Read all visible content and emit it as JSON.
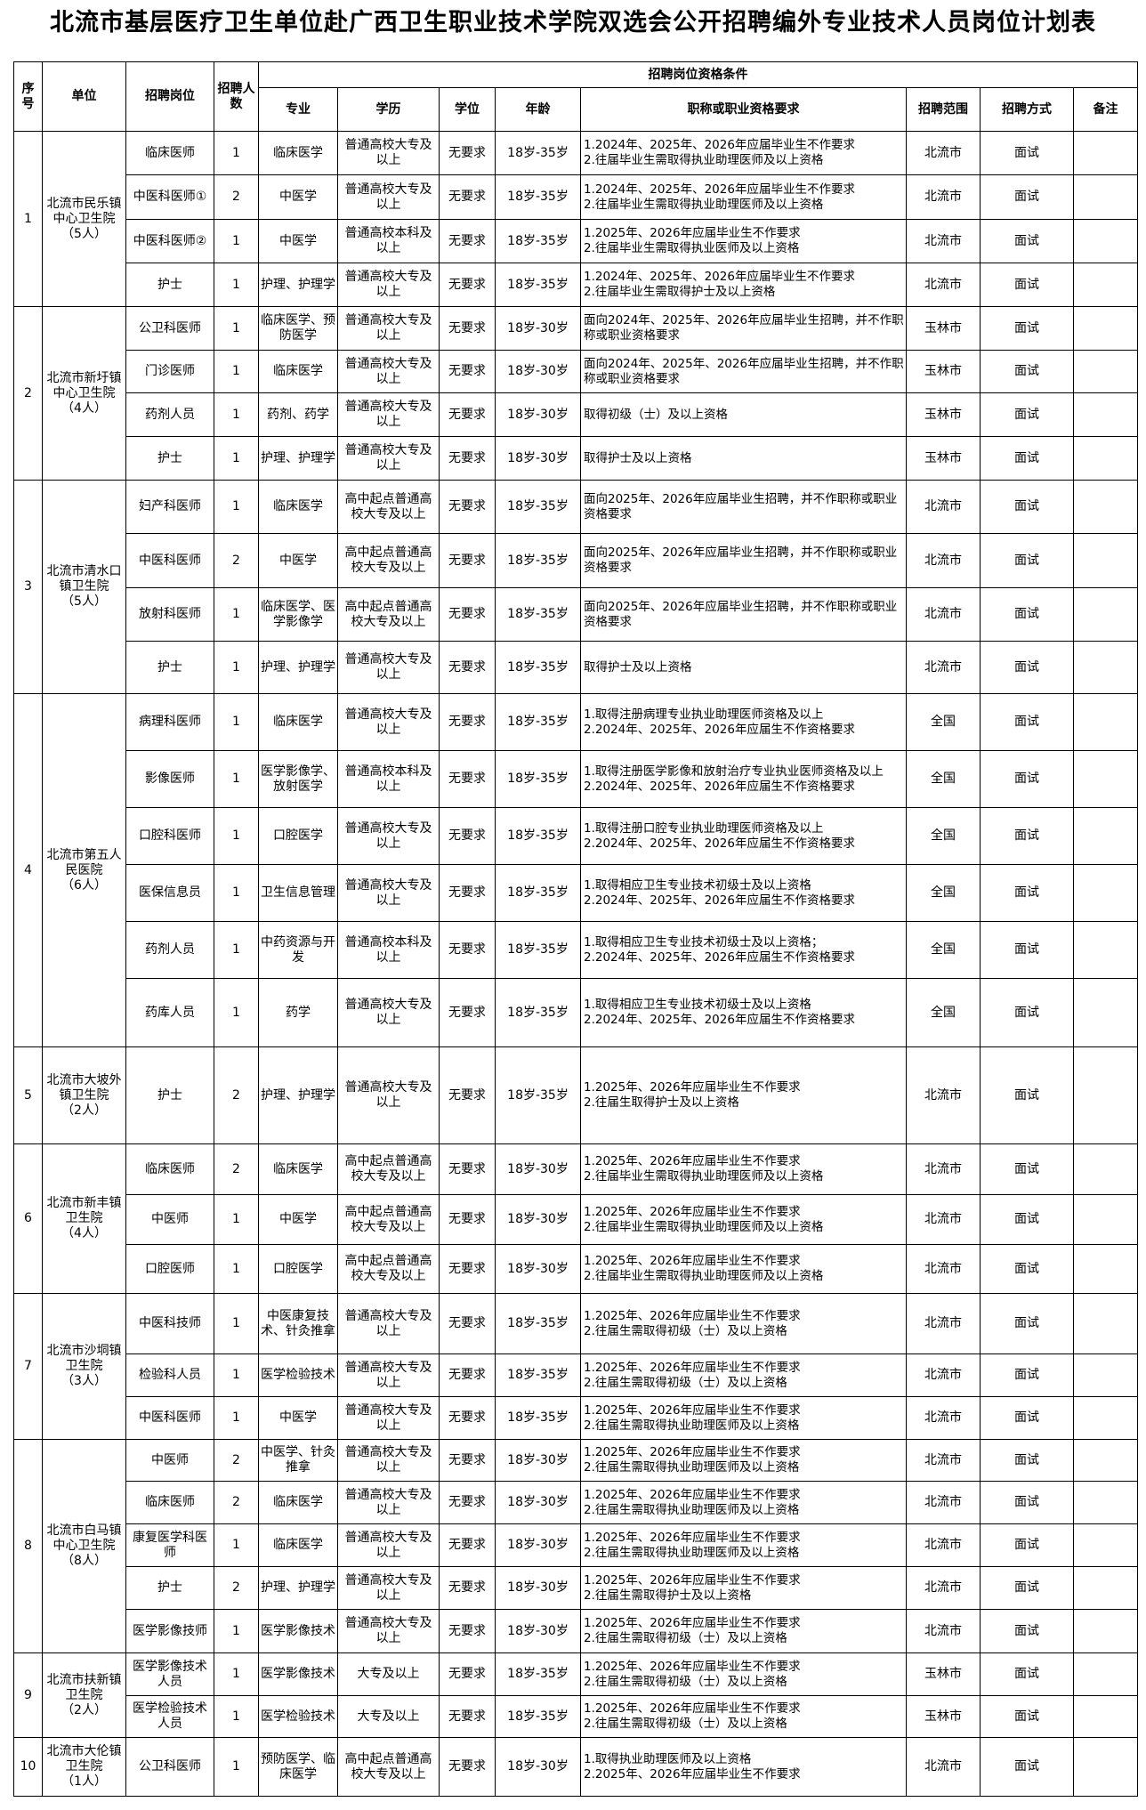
{
  "title": "北流市基层医疗卫生单位赴广西卫生职业技术学院双选会公开招聘编外专业技术人员岗位计划表",
  "headers": {
    "seq": "序号",
    "unit": "单位",
    "post": "招聘岗位",
    "count": "招聘人数",
    "conditions": "招聘岗位资格条件",
    "major": "专业",
    "edu": "学历",
    "degree": "学位",
    "age": "年龄",
    "req": "职称或职业资格要求",
    "scope": "招聘范围",
    "method": "招聘方式",
    "remark": "备注"
  },
  "groups": [
    {
      "seq": "1",
      "unit": "北流市民乐镇中心卫生院",
      "total": "（5人）",
      "rows": [
        {
          "post": "临床医师",
          "count": "1",
          "major": "临床医学",
          "edu": "普通高校大专及以上",
          "degree": "无要求",
          "age": "18岁-35岁",
          "req": [
            "1.2024年、2025年、2026年应届毕业生不作要求",
            "2.往届毕业生需取得执业助理医师及以上资格"
          ],
          "scope": "北流市",
          "method": "面试"
        },
        {
          "post": "中医科医师①",
          "count": "2",
          "major": "中医学",
          "edu": "普通高校大专及以上",
          "degree": "无要求",
          "age": "18岁-35岁",
          "req": [
            "1.2024年、2025年、2026年应届毕业生不作要求",
            "2.往届毕业生需取得执业助理医师及以上资格"
          ],
          "scope": "北流市",
          "method": "面试"
        },
        {
          "post": "中医科医师②",
          "count": "1",
          "major": "中医学",
          "edu": "普通高校本科及以上",
          "degree": "无要求",
          "age": "18岁-35岁",
          "req": [
            "1.2025年、2026年应届毕业生不作要求",
            "2.往届毕业生需取得执业医师及以上资格"
          ],
          "scope": "北流市",
          "method": "面试"
        },
        {
          "post": "护士",
          "count": "1",
          "major": "护理、护理学",
          "edu": "普通高校大专及以上",
          "degree": "无要求",
          "age": "18岁-35岁",
          "req": [
            "1.2024年、2025年、2026年应届毕业生不作要求",
            "2.往届毕业生需取得护士及以上资格"
          ],
          "scope": "北流市",
          "method": "面试"
        }
      ]
    },
    {
      "seq": "2",
      "unit": "北流市新圩镇中心卫生院",
      "total": "（4人）",
      "rows": [
        {
          "post": "公卫科医师",
          "count": "1",
          "major": "临床医学、预防医学",
          "edu": "普通高校大专及以上",
          "degree": "无要求",
          "age": "18岁-30岁",
          "req": [
            "面向2024年、2025年、2026年应届毕业生招聘，并不作职称或职业资格要求"
          ],
          "scope": "玉林市",
          "method": "面试"
        },
        {
          "post": "门诊医师",
          "count": "1",
          "major": "临床医学",
          "edu": "普通高校大专及以上",
          "degree": "无要求",
          "age": "18岁-30岁",
          "req": [
            "面向2024年、2025年、2026年应届毕业生招聘，并不作职称或职业资格要求"
          ],
          "scope": "玉林市",
          "method": "面试"
        },
        {
          "post": "药剂人员",
          "count": "1",
          "major": "药剂、药学",
          "edu": "普通高校大专及以上",
          "degree": "无要求",
          "age": "18岁-30岁",
          "req": [
            "取得初级（士）及以上资格"
          ],
          "scope": "玉林市",
          "method": "面试"
        },
        {
          "post": "护士",
          "count": "1",
          "major": "护理、护理学",
          "edu": "普通高校大专及以上",
          "degree": "无要求",
          "age": "18岁-30岁",
          "req": [
            "取得护士及以上资格"
          ],
          "scope": "玉林市",
          "method": "面试"
        }
      ]
    },
    {
      "seq": "3",
      "unit": "北流市清水口镇卫生院",
      "total": "（5人）",
      "rows": [
        {
          "post": "妇产科医师",
          "count": "1",
          "major": "临床医学",
          "edu": "高中起点普通高校大专及以上",
          "degree": "无要求",
          "age": "18岁-35岁",
          "req": [
            "面向2025年、2026年应届毕业生招聘，并不作职称或职业资格要求"
          ],
          "scope": "北流市",
          "method": "面试"
        },
        {
          "post": "中医科医师",
          "count": "2",
          "major": "中医学",
          "edu": "高中起点普通高校大专及以上",
          "degree": "无要求",
          "age": "18岁-35岁",
          "req": [
            "面向2025年、2026年应届毕业生招聘，并不作职称或职业资格要求"
          ],
          "scope": "北流市",
          "method": "面试"
        },
        {
          "post": "放射科医师",
          "count": "1",
          "major": "临床医学、医学影像学",
          "edu": "高中起点普通高校大专及以上",
          "degree": "无要求",
          "age": "18岁-35岁",
          "req": [
            "面向2025年、2026年应届毕业生招聘，并不作职称或职业资格要求"
          ],
          "scope": "北流市",
          "method": "面试"
        },
        {
          "post": "护士",
          "count": "1",
          "major": "护理、护理学",
          "edu": "普通高校大专及以上",
          "degree": "无要求",
          "age": "18岁-35岁",
          "req": [
            "取得护士及以上资格"
          ],
          "scope": "北流市",
          "method": "面试"
        }
      ]
    },
    {
      "seq": "4",
      "unit": "北流市第五人民医院",
      "total": "（6人）",
      "rows": [
        {
          "post": "病理科医师",
          "count": "1",
          "major": "临床医学",
          "edu": "普通高校大专及以上",
          "degree": "无要求",
          "age": "18岁-35岁",
          "req": [
            "1.取得注册病理专业执业助理医师资格及以上",
            "2.2024年、2025年、2026年应届生不作资格要求"
          ],
          "scope": "全国",
          "method": "面试"
        },
        {
          "post": "影像医师",
          "count": "1",
          "major": "医学影像学、放射医学",
          "edu": "普通高校本科及以上",
          "degree": "无要求",
          "age": "18岁-35岁",
          "req": [
            "1.取得注册医学影像和放射治疗专业执业医师资格及以上",
            "2.2024年、2025年、2026年应届生不作资格要求"
          ],
          "scope": "全国",
          "method": "面试"
        },
        {
          "post": "口腔科医师",
          "count": "1",
          "major": "口腔医学",
          "edu": "普通高校大专及以上",
          "degree": "无要求",
          "age": "18岁-35岁",
          "req": [
            "1.取得注册口腔专业执业助理医师资格及以上",
            "2.2024年、2025年、2026年应届生不作资格要求"
          ],
          "scope": "全国",
          "method": "面试"
        },
        {
          "post": "医保信息员",
          "count": "1",
          "major": "卫生信息管理",
          "edu": "普通高校大专及以上",
          "degree": "无要求",
          "age": "18岁-35岁",
          "req": [
            "1.取得相应卫生专业技术初级士及以上资格",
            "2.2024年、2025年、2026年应届生不作资格要求"
          ],
          "scope": "全国",
          "method": "面试"
        },
        {
          "post": "药剂人员",
          "count": "1",
          "major": "中药资源与开发",
          "edu": "普通高校本科及以上",
          "degree": "无要求",
          "age": "18岁-35岁",
          "req": [
            "1.取得相应卫生专业技术初级士及以上资格；",
            "2.2024年、2025年、2026年应届生不作资格要求"
          ],
          "scope": "全国",
          "method": "面试"
        },
        {
          "post": "药库人员",
          "count": "1",
          "major": "药学",
          "edu": "普通高校大专及以上",
          "degree": "无要求",
          "age": "18岁-35岁",
          "req": [
            "1.取得相应卫生专业技术初级士及以上资格",
            "2.2024年、2025年、2026年应届生不作资格要求"
          ],
          "scope": "全国",
          "method": "面试"
        }
      ]
    },
    {
      "seq": "5",
      "unit": "北流市大坡外镇卫生院",
      "total": "（2人）",
      "rows": [
        {
          "post": "护士",
          "count": "2",
          "major": "护理、护理学",
          "edu": "普通高校大专及以上",
          "degree": "无要求",
          "age": "18岁-35岁",
          "req": [
            "1.2025年、2026年应届毕业生不作要求",
            "2.往届生取得护士及以上资格"
          ],
          "scope": "北流市",
          "method": "面试"
        }
      ]
    },
    {
      "seq": "6",
      "unit": "北流市新丰镇卫生院",
      "total": "（4人）",
      "rows": [
        {
          "post": "临床医师",
          "count": "2",
          "major": "临床医学",
          "edu": "高中起点普通高校大专及以上",
          "degree": "无要求",
          "age": "18岁-30岁",
          "req": [
            "1.2025年、2026年应届毕业生不作要求",
            "2.往届毕业生需取得执业助理医师及以上资格"
          ],
          "scope": "北流市",
          "method": "面试"
        },
        {
          "post": "中医师",
          "count": "1",
          "major": "中医学",
          "edu": "高中起点普通高校大专及以上",
          "degree": "无要求",
          "age": "18岁-30岁",
          "req": [
            "1.2025年、2026年应届毕业生不作要求",
            "2.往届毕业生需取得执业助理医师及以上资格"
          ],
          "scope": "北流市",
          "method": "面试"
        },
        {
          "post": "口腔医师",
          "count": "1",
          "major": "口腔医学",
          "edu": "高中起点普通高校大专及以上",
          "degree": "无要求",
          "age": "18岁-30岁",
          "req": [
            "1.2025年、2026年应届毕业生不作要求",
            "2.往届毕业生需取得执业助理医师及以上资格"
          ],
          "scope": "北流市",
          "method": "面试"
        }
      ]
    },
    {
      "seq": "7",
      "unit": "北流市沙垌镇卫生院",
      "total": "（3人）",
      "rows": [
        {
          "post": "中医科技师",
          "count": "1",
          "major": "中医康复技术、针灸推拿",
          "edu": "普通高校大专及以上",
          "degree": "无要求",
          "age": "18岁-35岁",
          "req": [
            "1.2025年、2026年应届毕业生不作要求",
            "2.往届生需取得初级（士）及以上资格"
          ],
          "scope": "北流市",
          "method": "面试"
        },
        {
          "post": "检验科人员",
          "count": "1",
          "major": "医学检验技术",
          "edu": "普通高校大专及以上",
          "degree": "无要求",
          "age": "18岁-35岁",
          "req": [
            "1.2025年、2026年应届毕业生不作要求",
            "2.往届生需取得初级（士）及以上资格"
          ],
          "scope": "北流市",
          "method": "面试"
        },
        {
          "post": "中医科医师",
          "count": "1",
          "major": "中医学",
          "edu": "普通高校大专及以上",
          "degree": "无要求",
          "age": "18岁-35岁",
          "req": [
            "1.2025年、2026年应届毕业生不作要求",
            "2.往届生需取得执业助理医师及以上资格"
          ],
          "scope": "北流市",
          "method": "面试"
        }
      ]
    },
    {
      "seq": "8",
      "unit": "北流市白马镇中心卫生院",
      "total": "（8人）",
      "rows": [
        {
          "post": "中医师",
          "count": "2",
          "major": "中医学、针灸推拿",
          "edu": "普通高校大专及以上",
          "degree": "无要求",
          "age": "18岁-30岁",
          "req": [
            "1.2025年、2026年应届毕业生不作要求",
            "2.往届生需取得执业助理医师及以上资格"
          ],
          "scope": "北流市",
          "method": "面试"
        },
        {
          "post": "临床医师",
          "count": "2",
          "major": "临床医学",
          "edu": "普通高校大专及以上",
          "degree": "无要求",
          "age": "18岁-30岁",
          "req": [
            "1.2025年、2026年应届毕业生不作要求",
            "2.往届生需取得执业助理医师及以上资格"
          ],
          "scope": "北流市",
          "method": "面试"
        },
        {
          "post": "康复医学科医师",
          "count": "1",
          "major": "临床医学",
          "edu": "普通高校大专及以上",
          "degree": "无要求",
          "age": "18岁-30岁",
          "req": [
            "1.2025年、2026年应届毕业生不作要求",
            "2.往届生需取得执业助理医师及以上资格"
          ],
          "scope": "北流市",
          "method": "面试"
        },
        {
          "post": "护士",
          "count": "2",
          "major": "护理、护理学",
          "edu": "普通高校大专及以上",
          "degree": "无要求",
          "age": "18岁-30岁",
          "req": [
            "1.2025年、2026年应届毕业生不作要求",
            "2.往届生需取得护士及以上资格"
          ],
          "scope": "北流市",
          "method": "面试"
        },
        {
          "post": "医学影像技师",
          "count": "1",
          "major": "医学影像技术",
          "edu": "普通高校大专及以上",
          "degree": "无要求",
          "age": "18岁-30岁",
          "req": [
            "1.2025年、2026年应届毕业生不作要求",
            "2.往届生需取得初级（士）及以上资格"
          ],
          "scope": "北流市",
          "method": "面试"
        }
      ]
    },
    {
      "seq": "9",
      "unit": "北流市扶新镇卫生院",
      "total": "（2人）",
      "rows": [
        {
          "post": "医学影像技术人员",
          "count": "1",
          "major": "医学影像技术",
          "edu": "大专及以上",
          "degree": "无要求",
          "age": "18岁-35岁",
          "req": [
            "1.2025年、2026年应届毕业生不作要求",
            "2.往届生需取得初级（士）及以上资格"
          ],
          "scope": "玉林市",
          "method": "面试"
        },
        {
          "post": "医学检验技术人员",
          "count": "1",
          "major": "医学检验技术",
          "edu": "大专及以上",
          "degree": "无要求",
          "age": "18岁-35岁",
          "req": [
            "1.2025年、2026年应届毕业生不作要求",
            "2.往届生需取得初级（士）及以上资格"
          ],
          "scope": "玉林市",
          "method": "面试"
        }
      ]
    },
    {
      "seq": "10",
      "unit": "北流市大伦镇卫生院",
      "total": "（1人）",
      "rows": [
        {
          "post": "公卫科医师",
          "count": "1",
          "major": "预防医学、临床医学",
          "edu": "高中起点普通高校大专及以上",
          "degree": "无要求",
          "age": "18岁-30岁",
          "req": [
            "1.取得执业助理医师及以上资格",
            "2.2025年、2026年应届毕业生不作要求"
          ],
          "scope": "北流市",
          "method": "面试"
        }
      ]
    }
  ]
}
